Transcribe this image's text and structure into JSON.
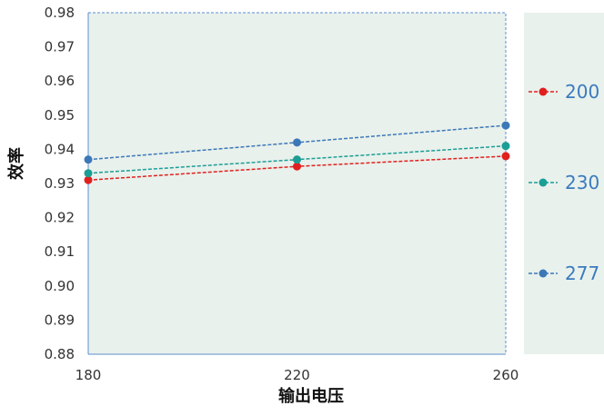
{
  "chart_data": {
    "type": "line",
    "xlabel": "输出电压",
    "ylabel": "效率",
    "x": [
      180,
      220,
      260
    ],
    "x_ticks": [
      "180",
      "220",
      "260"
    ],
    "xlim": [
      180,
      260
    ],
    "ylim": [
      0.88,
      0.98
    ],
    "y_ticks": [
      "0.88",
      "0.89",
      "0.90",
      "0.91",
      "0.92",
      "0.93",
      "0.94",
      "0.95",
      "0.96",
      "0.97",
      "0.98"
    ],
    "grid": false,
    "legend_position": "right",
    "plot_background": "#e9f1ec",
    "series": [
      {
        "name": "200",
        "color": "#e0201e",
        "values": [
          0.931,
          0.935,
          0.938
        ]
      },
      {
        "name": "230",
        "color": "#1a9e96",
        "values": [
          0.933,
          0.937,
          0.941
        ]
      },
      {
        "name": "277",
        "color": "#3c78b8",
        "values": [
          0.937,
          0.942,
          0.947
        ]
      }
    ]
  }
}
